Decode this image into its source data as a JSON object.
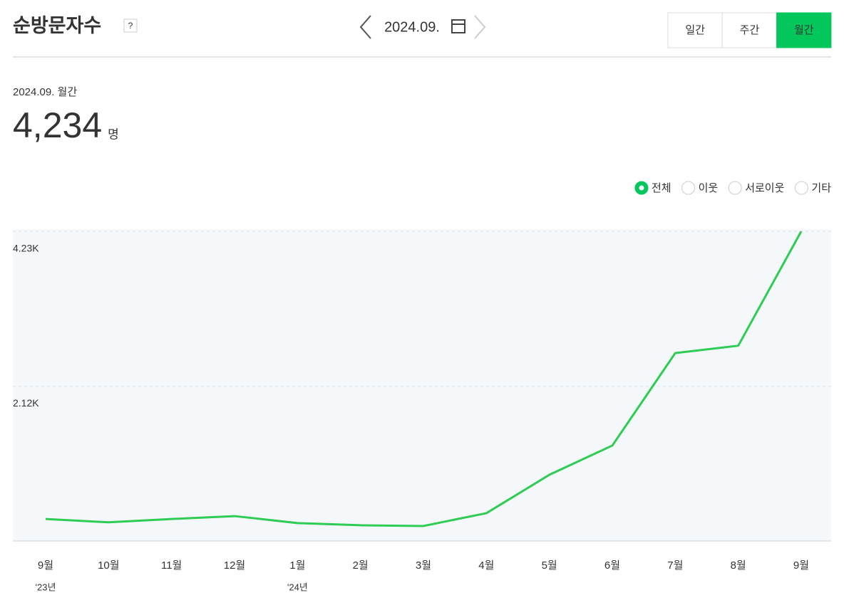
{
  "header": {
    "title": "순방문자수",
    "help": "?",
    "date": "2024.09.",
    "tabs": [
      "일간",
      "주간",
      "월간"
    ],
    "active_tab": 2
  },
  "summary": {
    "period": "2024.09. 월간",
    "value": "4,234",
    "unit": "명"
  },
  "chart_data": {
    "type": "line",
    "legend_options": [
      "전체",
      "이웃",
      "서로이웃",
      "기타"
    ],
    "selected_option": 0,
    "categories": [
      "9월",
      "10월",
      "11월",
      "12월",
      "1월",
      "2월",
      "3월",
      "4월",
      "5월",
      "6월",
      "7월",
      "8월",
      "9월"
    ],
    "year_labels": [
      "'23년",
      null,
      null,
      null,
      "'24년",
      null,
      null,
      null,
      null,
      null,
      null,
      null,
      null
    ],
    "values": [
      300,
      255,
      300,
      340,
      245,
      215,
      205,
      380,
      905,
      1305,
      2570,
      2670,
      4234
    ],
    "color": "#2ecc52",
    "ylim": [
      0,
      4234
    ],
    "yticks": [
      {
        "value": 2117,
        "label": "2.12K"
      },
      {
        "value": 4234,
        "label": "4.23K"
      }
    ],
    "grid": true
  }
}
